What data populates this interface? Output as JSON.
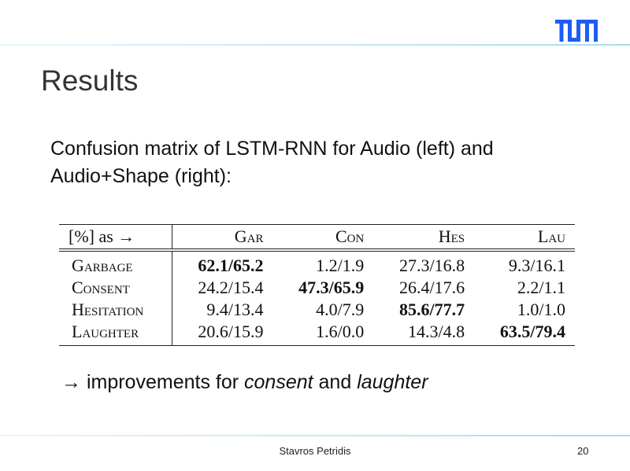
{
  "slide": {
    "title": "Results",
    "intro": "Confusion matrix of LSTM-RNN for Audio (left) and Audio+Shape (right):",
    "table": {
      "corner": "[%] as →",
      "columns": [
        "Gar",
        "Con",
        "Hes",
        "Lau"
      ],
      "rows": [
        {
          "label": "Garbage",
          "cells": [
            "62.1/65.2",
            "1.2/1.9",
            "27.3/16.8",
            "9.3/16.1"
          ],
          "bold_index": 0
        },
        {
          "label": "Consent",
          "cells": [
            "24.2/15.4",
            "47.3/65.9",
            "26.4/17.6",
            "2.2/1.1"
          ],
          "bold_index": 1
        },
        {
          "label": "Hesitation",
          "cells": [
            "9.4/13.4",
            "4.0/7.9",
            "85.6/77.7",
            "1.0/1.0"
          ],
          "bold_index": 2
        },
        {
          "label": "Laughter",
          "cells": [
            "20.6/15.9",
            "1.6/0.0",
            "14.3/4.8",
            "63.5/79.4"
          ],
          "bold_index": 3
        }
      ]
    },
    "conclusion": {
      "arrow": "→",
      "text1": "improvements for ",
      "em1": "consent",
      "text2": " and ",
      "em2": "laughter"
    },
    "footer": "Stavros Petridis",
    "page_number": "20",
    "logo_text": "TUM",
    "colors": {
      "logo": "#1f5cf5",
      "rule": "#a8dcef"
    }
  }
}
